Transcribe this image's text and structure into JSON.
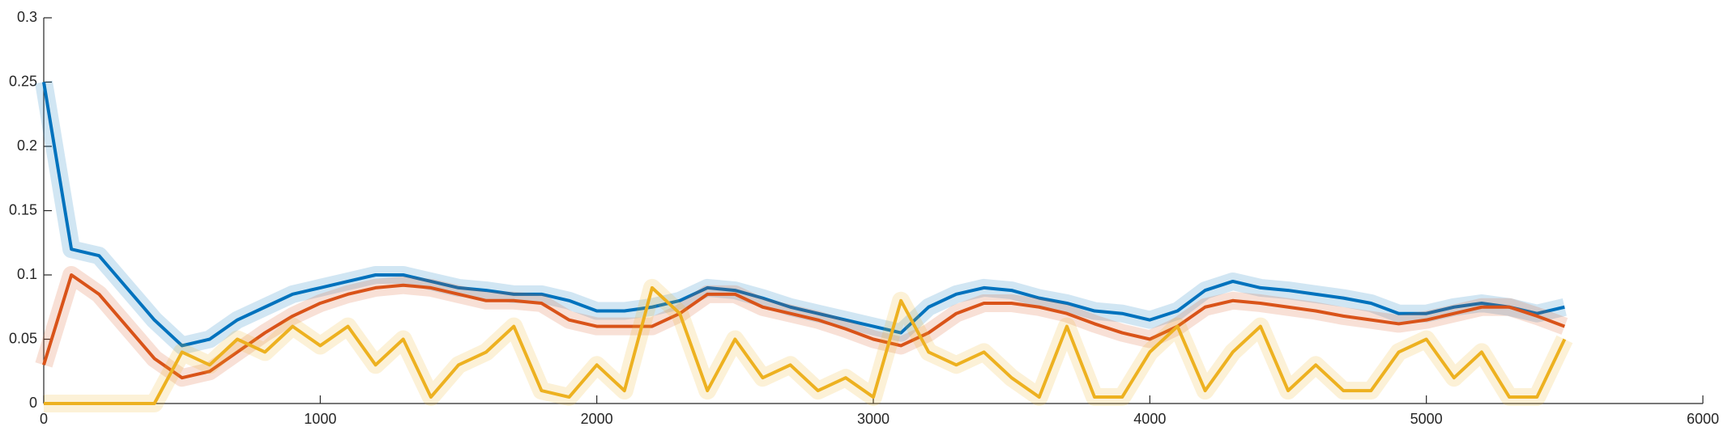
{
  "chart_data": {
    "type": "line",
    "x": [
      0,
      100,
      200,
      300,
      400,
      500,
      600,
      700,
      800,
      900,
      1000,
      1100,
      1200,
      1300,
      1400,
      1500,
      1600,
      1700,
      1800,
      1900,
      2000,
      2100,
      2200,
      2300,
      2400,
      2500,
      2600,
      2700,
      2800,
      2900,
      3000,
      3100,
      3200,
      3300,
      3400,
      3500,
      3600,
      3700,
      3800,
      3900,
      4000,
      4100,
      4200,
      4300,
      4400,
      4500,
      4600,
      4700,
      4800,
      4900,
      5000,
      5100,
      5200,
      5300,
      5400,
      5500
    ],
    "series": [
      {
        "color": "#0072bd",
        "values": [
          0.25,
          0.12,
          0.115,
          0.09,
          0.065,
          0.045,
          0.05,
          0.065,
          0.075,
          0.085,
          0.09,
          0.095,
          0.1,
          0.1,
          0.095,
          0.09,
          0.088,
          0.085,
          0.085,
          0.08,
          0.072,
          0.072,
          0.075,
          0.08,
          0.09,
          0.088,
          0.082,
          0.075,
          0.07,
          0.065,
          0.06,
          0.055,
          0.075,
          0.085,
          0.09,
          0.088,
          0.082,
          0.078,
          0.072,
          0.07,
          0.065,
          0.072,
          0.088,
          0.095,
          0.09,
          0.088,
          0.085,
          0.082,
          0.078,
          0.07,
          0.07,
          0.075,
          0.078,
          0.075,
          0.07,
          0.075
        ]
      },
      {
        "color": "#d95319",
        "values": [
          0.03,
          0.1,
          0.085,
          0.06,
          0.035,
          0.02,
          0.025,
          0.04,
          0.055,
          0.068,
          0.078,
          0.085,
          0.09,
          0.092,
          0.09,
          0.085,
          0.08,
          0.08,
          0.078,
          0.065,
          0.06,
          0.06,
          0.06,
          0.07,
          0.085,
          0.085,
          0.075,
          0.07,
          0.065,
          0.058,
          0.05,
          0.045,
          0.055,
          0.07,
          0.078,
          0.078,
          0.075,
          0.07,
          0.062,
          0.055,
          0.05,
          0.06,
          0.075,
          0.08,
          0.078,
          0.075,
          0.072,
          0.068,
          0.065,
          0.062,
          0.065,
          0.07,
          0.075,
          0.075,
          0.068,
          0.06
        ]
      },
      {
        "color": "#edb120",
        "values": [
          0,
          0,
          0,
          0,
          0,
          0.04,
          0.03,
          0.05,
          0.04,
          0.06,
          0.045,
          0.06,
          0.03,
          0.05,
          0.005,
          0.03,
          0.04,
          0.06,
          0.01,
          0.005,
          0.03,
          0.01,
          0.09,
          0.07,
          0.01,
          0.05,
          0.02,
          0.03,
          0.01,
          0.02,
          0.005,
          0.08,
          0.04,
          0.03,
          0.04,
          0.02,
          0.005,
          0.06,
          0.005,
          0.005,
          0.04,
          0.06,
          0.01,
          0.04,
          0.06,
          0.01,
          0.03,
          0.01,
          0.01,
          0.04,
          0.05,
          0.02,
          0.04,
          0.005,
          0.005,
          0.05
        ]
      }
    ],
    "xlim": [
      0,
      6000
    ],
    "xticks": [
      0,
      1000,
      2000,
      3000,
      4000,
      5000,
      6000
    ],
    "ylim": [
      0,
      0.3
    ],
    "yticks": [
      0,
      0.05,
      0.1,
      0.15,
      0.2,
      0.25,
      0.3
    ]
  }
}
